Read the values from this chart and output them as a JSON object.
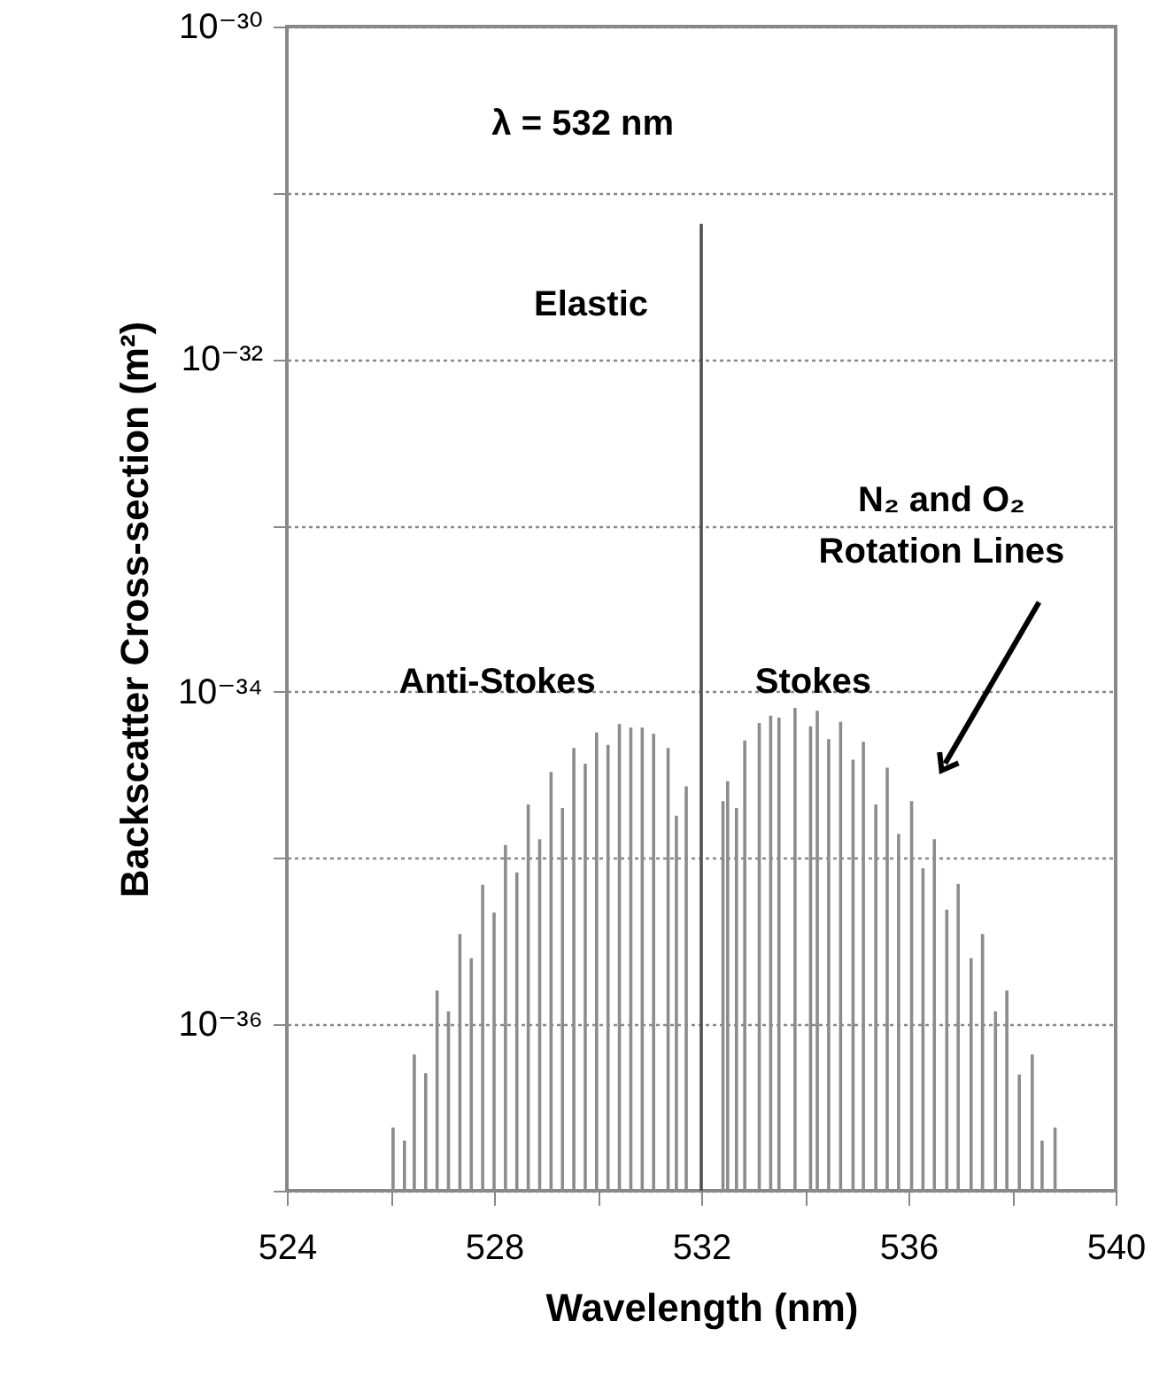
{
  "chart_data": {
    "type": "bar",
    "xlabel": "Wavelength (nm)",
    "ylabel": "Backscatter Cross-section (m²)",
    "xlim": [
      524,
      540
    ],
    "xticks": [
      524,
      {
        "value": 526,
        "label": null
      },
      528,
      {
        "value": 530,
        "label": null
      },
      532,
      {
        "value": 534,
        "label": null
      },
      536,
      {
        "value": 538,
        "label": null
      },
      540
    ],
    "ylim": [
      1e-37,
      1e-30
    ],
    "log": true,
    "grid": "y",
    "yticks": [
      {
        "value": 1e-37,
        "label": null
      },
      {
        "value": 1e-36,
        "label": "10⁻³⁶"
      },
      {
        "value": 1e-35,
        "label": null
      },
      {
        "value": 1e-34,
        "label": "10⁻³⁴"
      },
      {
        "value": 1e-33,
        "label": null
      },
      {
        "value": 1e-32,
        "label": "10⁻³²"
      },
      {
        "value": 1e-31,
        "label": null
      },
      {
        "value": 1e-30,
        "label": "10⁻³⁰"
      }
    ],
    "series": [
      {
        "color": "#8c8c8c",
        "x": [
          526.05,
          526.27,
          526.46,
          526.68,
          526.9,
          527.12,
          527.34,
          527.56,
          527.78,
          528.0,
          528.22,
          528.44,
          528.66,
          528.88,
          529.1,
          529.32,
          529.54,
          529.76,
          529.98,
          530.2,
          530.42,
          530.64,
          530.86,
          531.08,
          531.36,
          531.52,
          531.71,
          532.42,
          532.51,
          532.68,
          532.84,
          533.12,
          533.34,
          533.5,
          533.81,
          534.11,
          534.24,
          534.46,
          534.69,
          534.93,
          535.13,
          535.37,
          535.59,
          535.81,
          536.06,
          536.28,
          536.5,
          536.74,
          536.96,
          537.21,
          537.43,
          537.68,
          537.9,
          538.14,
          538.39,
          538.58,
          538.83
        ],
        "values": [
          2.4e-37,
          2e-37,
          6.6e-37,
          5.1e-37,
          1.6e-36,
          1.2e-36,
          3.5e-36,
          2.5e-36,
          6.9e-36,
          4.7e-36,
          1.2e-35,
          8.2e-36,
          2.1e-35,
          1.3e-35,
          3.3e-35,
          2e-35,
          4.6e-35,
          3.7e-35,
          5.7e-35,
          4.8e-35,
          6.4e-35,
          6.1e-35,
          6.1e-35,
          5.6e-35,
          4.6e-35,
          1.8e-35,
          2.7e-35,
          2.2e-35,
          2.9e-35,
          2e-35,
          5.1e-35,
          6.5e-35,
          7.2e-35,
          7e-35,
          8e-35,
          6.2e-35,
          7.7e-35,
          5.2e-35,
          6.6e-35,
          3.9e-35,
          5e-35,
          2.1e-35,
          3.5e-35,
          1.4e-35,
          2.2e-35,
          8.7e-36,
          1.3e-35,
          4.9e-36,
          7e-36,
          2.5e-36,
          3.5e-36,
          1.2e-36,
          1.6e-36,
          5e-37,
          6.6e-37,
          2e-37,
          2.4e-37
        ]
      },
      {
        "color": "#505050",
        "x": [
          532
        ],
        "values": [
          6.5e-32
        ]
      }
    ],
    "annotations": [
      "λ = 532 nm",
      "Elastic",
      "Anti-Stokes",
      "Stokes",
      "N₂ and O₂\nRotation Lines"
    ]
  }
}
